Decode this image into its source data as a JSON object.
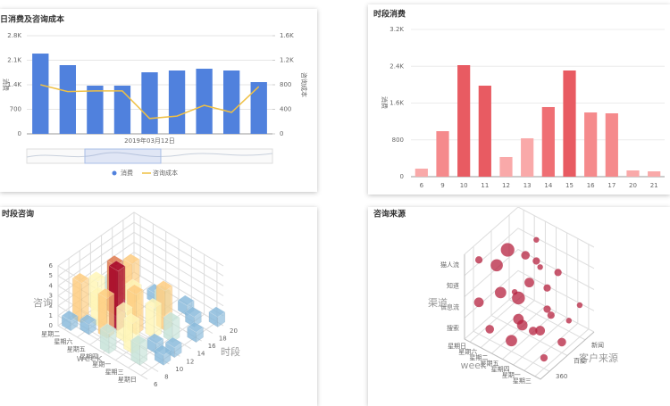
{
  "chart_data": [
    {
      "type": "bar-line",
      "title": "每日消费及咨询成本",
      "xlabel": "2019年03月12日",
      "ylabel": "消费",
      "y2label": "咨询成本",
      "categories": [
        null,
        null,
        null,
        null,
        null,
        null,
        null,
        null,
        null
      ],
      "series": [
        {
          "name": "消费",
          "type": "bar",
          "color": "#5081dd",
          "values": [
            2290,
            1960,
            1375,
            1375,
            1756,
            1807,
            1858,
            1807,
            1476
          ]
        },
        {
          "name": "咨询成本",
          "type": "line",
          "axis": "y2",
          "color": "#efc044",
          "values": [
            800,
            690,
            700,
            700,
            250,
            290,
            465,
            350,
            770
          ]
        }
      ],
      "ylim": [
        0,
        2800
      ],
      "yticks": [
        0,
        700,
        {
          "value": 1400,
          "label": "1.4K"
        },
        {
          "value": 2100,
          "label": "2.1K"
        },
        {
          "value": 2800,
          "label": "2.8K"
        }
      ],
      "y2lim": [
        0,
        1600
      ],
      "y2ticks": [
        0,
        400,
        800,
        {
          "value": 1200,
          "label": "1.2K"
        },
        {
          "value": 1600,
          "label": "1.6K"
        }
      ],
      "grid": true
    },
    {
      "type": "bar",
      "title": "时段消费",
      "ylabel": "消费",
      "categories": [
        "6",
        "9",
        "10",
        "11",
        "12",
        "13",
        "14",
        "15",
        "16",
        "17",
        "20",
        "21"
      ],
      "values": [
        175,
        989,
        2424,
        1978,
        427,
        834,
        1513,
        2308,
        1396,
        1377,
        136,
        116
      ],
      "colors": [
        "#f9a9a9",
        "#f58a8c",
        "#e85b62",
        "#e85b62",
        "#f9a9a9",
        "#f9a9a9",
        "#ef6f74",
        "#e85b62",
        "#f58a8c",
        "#f58a8c",
        "#f9a9a9",
        "#f9a9a9"
      ],
      "ylim": [
        0,
        3200
      ],
      "yticks": [
        0,
        800,
        {
          "value": 1600,
          "label": "1.6K"
        },
        {
          "value": 2400,
          "label": "2.4K"
        },
        {
          "value": 3200,
          "label": "3.2K"
        }
      ],
      "grid": true
    },
    {
      "type": "bar3d",
      "title": "时段咨询",
      "xlabel": "week",
      "ylabel": "时段",
      "zlabel": "咨询",
      "weeks": [
        "星期二",
        "星期六",
        "星期五",
        "星期四",
        "星期一",
        "星期三",
        "星期日"
      ],
      "ylim": [
        6,
        20
      ],
      "yticks": [
        6,
        8,
        10,
        12,
        14,
        16,
        18,
        20
      ],
      "zlim": [
        0,
        6
      ],
      "zticks": [
        0,
        1,
        2,
        3,
        4,
        5,
        6
      ],
      "visual_colors": [
        "#4a7fc1",
        "#abd9e9",
        "#fff6b8",
        "#fdb865",
        "#a50026"
      ],
      "data": [
        [
          0,
          7,
          1
        ],
        [
          0,
          9,
          4
        ],
        [
          0,
          12,
          3
        ],
        [
          0,
          15,
          2
        ],
        [
          1,
          8,
          1
        ],
        [
          1,
          10,
          3
        ],
        [
          1,
          13,
          5
        ],
        [
          1,
          16,
          4
        ],
        [
          2,
          9,
          4
        ],
        [
          2,
          11,
          6
        ],
        [
          2,
          14,
          3
        ],
        [
          2,
          18,
          1
        ],
        [
          3,
          7,
          2
        ],
        [
          3,
          10,
          3
        ],
        [
          3,
          12,
          4
        ],
        [
          3,
          17,
          2
        ],
        [
          4,
          9,
          3
        ],
        [
          4,
          13,
          3
        ],
        [
          4,
          15,
          4
        ],
        [
          4,
          19,
          1
        ],
        [
          5,
          8,
          2
        ],
        [
          5,
          11,
          1
        ],
        [
          5,
          14,
          2
        ],
        [
          5,
          18,
          1
        ],
        [
          6,
          10,
          1
        ],
        [
          6,
          12,
          1
        ],
        [
          6,
          16,
          1
        ],
        [
          6,
          20,
          1
        ]
      ]
    },
    {
      "type": "scatter3d",
      "title": "咨询来源",
      "xlabel": "客户来源",
      "ylabel": "week",
      "zlabel": "渠道",
      "sources": [
        "360",
        "百度",
        "新闻"
      ],
      "weeks": [
        "星期日",
        "星期六",
        "星期二",
        "星期五",
        "星期四",
        "星期一",
        "星期三"
      ],
      "channels": [
        "搜索",
        "信息流",
        "知道",
        "猫人流"
      ],
      "color": "#b5213f",
      "data": [
        [
          0,
          0,
          3,
          2
        ],
        [
          1,
          1,
          3,
          9
        ],
        [
          2,
          2,
          3,
          1
        ],
        [
          0,
          2,
          2,
          6
        ],
        [
          1,
          0,
          2,
          7
        ],
        [
          2,
          1,
          2,
          3
        ],
        [
          1,
          3,
          2,
          4
        ],
        [
          2,
          4,
          2,
          2
        ],
        [
          0,
          4,
          1,
          5
        ],
        [
          1,
          2,
          1,
          8
        ],
        [
          2,
          3,
          1,
          2
        ],
        [
          0,
          5,
          1,
          3
        ],
        [
          2,
          6,
          1,
          1
        ],
        [
          1,
          5,
          1,
          2
        ],
        [
          0,
          1,
          0,
          3
        ],
        [
          1,
          2,
          0,
          5
        ],
        [
          2,
          3,
          0,
          2
        ],
        [
          0,
          3,
          0,
          6
        ],
        [
          1,
          4,
          0,
          4
        ],
        [
          2,
          5,
          0,
          1
        ],
        [
          0,
          6,
          0,
          2
        ],
        [
          1,
          6,
          0,
          3
        ],
        [
          2,
          0,
          0,
          1
        ],
        [
          0,
          0,
          1,
          4
        ],
        [
          2,
          2,
          2,
          2
        ],
        [
          1,
          4,
          3,
          1
        ]
      ]
    }
  ]
}
